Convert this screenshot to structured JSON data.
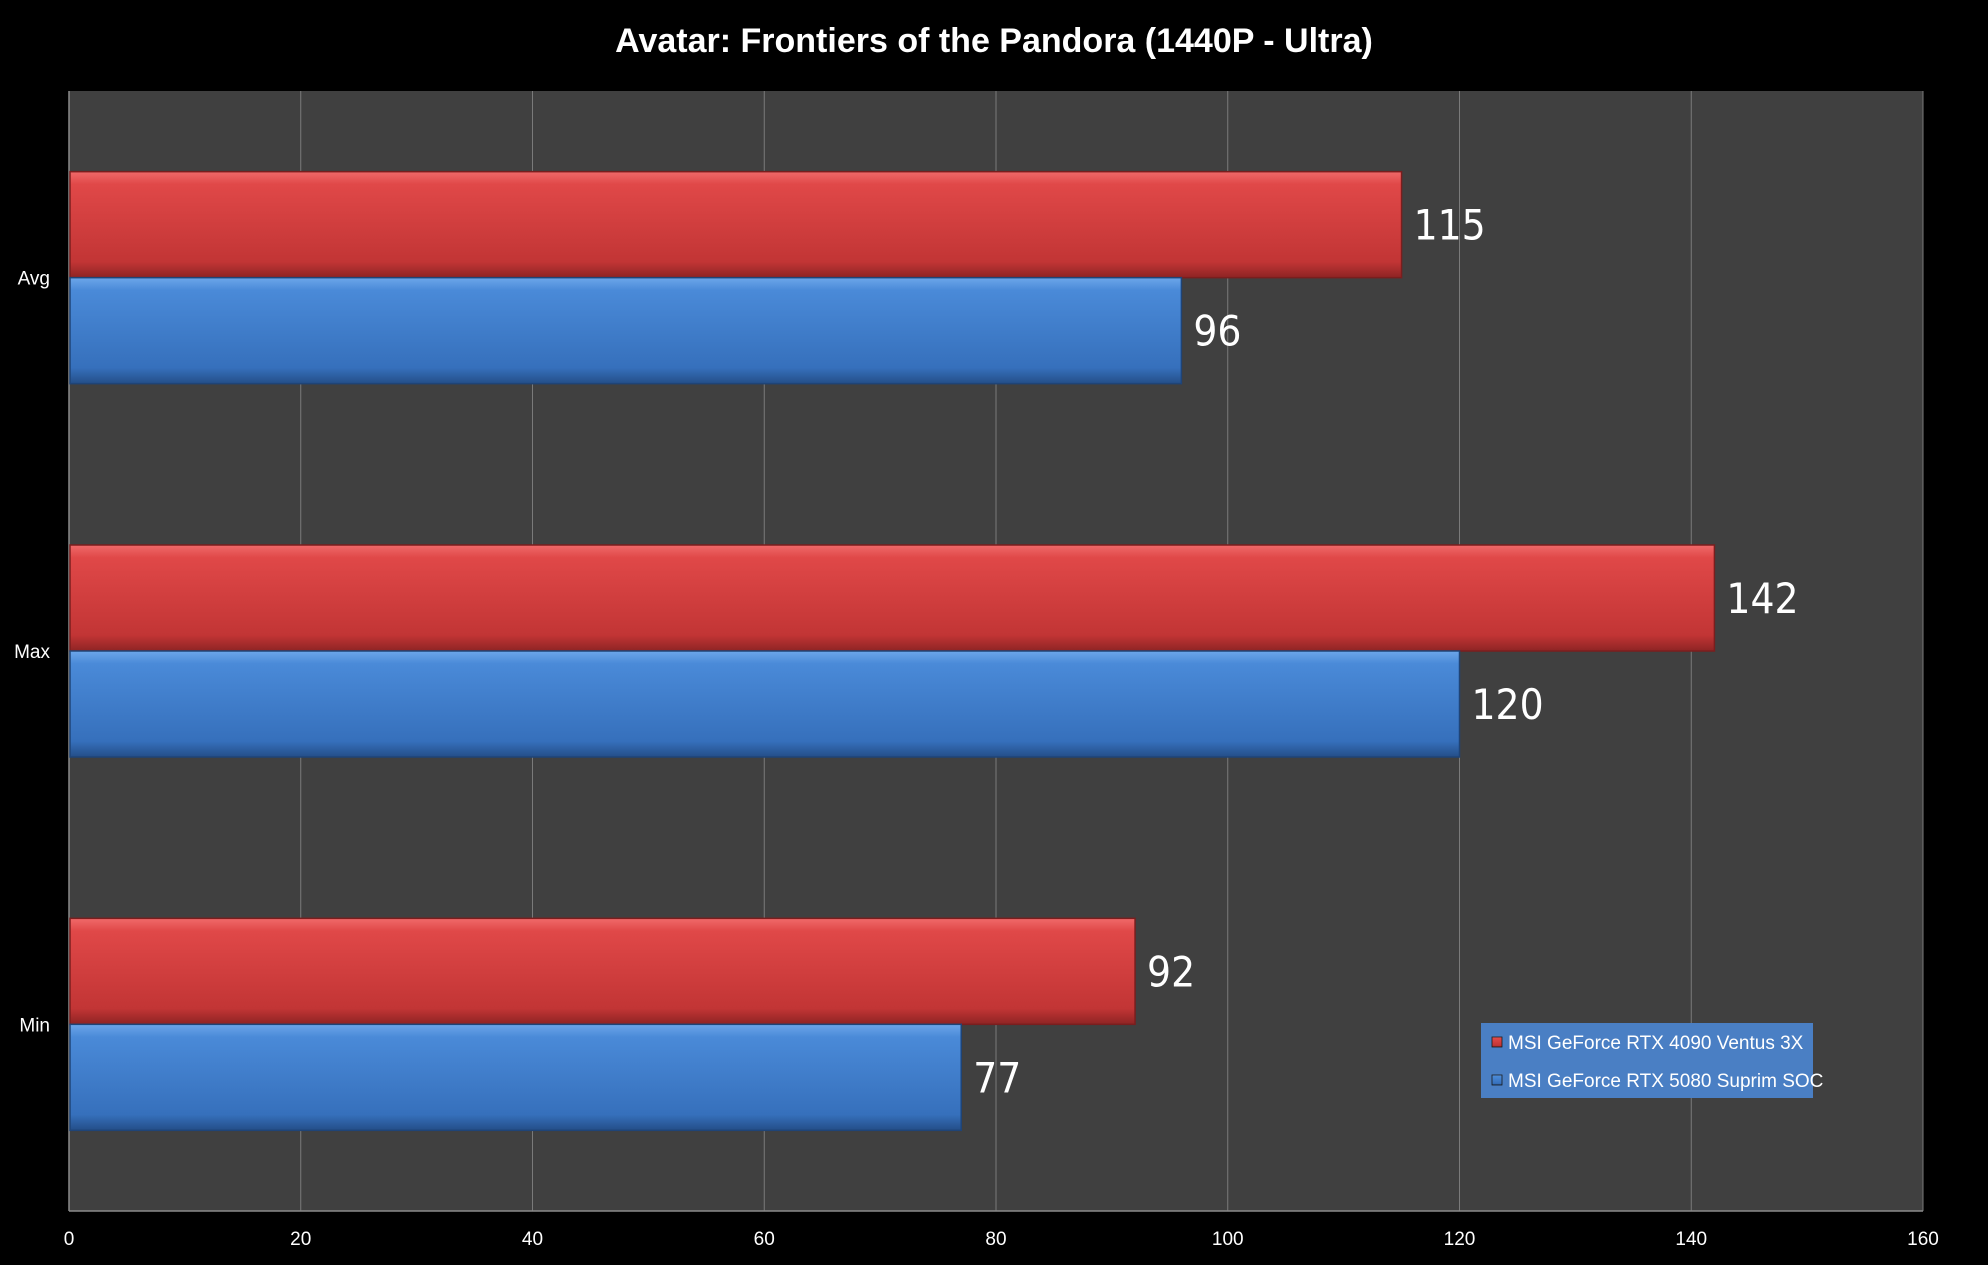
{
  "chart_data": {
    "type": "bar",
    "orientation": "horizontal",
    "title": "Avatar: Frontiers of the Pandora (1440P - Ultra)",
    "categories": [
      "Avg",
      "Max",
      "Min"
    ],
    "series": [
      {
        "name": "MSI GeForce RTX 4090 Ventus 3X",
        "color": "#d94040",
        "values": [
          115,
          142,
          92
        ]
      },
      {
        "name": "MSI GeForce RTX 5080 Suprim SOC",
        "color": "#3f82d4",
        "values": [
          96,
          120,
          77
        ]
      }
    ],
    "xlim": [
      0,
      160
    ],
    "xticks": [
      0,
      20,
      40,
      60,
      80,
      100,
      120,
      140,
      160
    ],
    "grid": true,
    "legend_position": "bottom-right",
    "plot_background": "#404040",
    "page_background": "#000000"
  }
}
